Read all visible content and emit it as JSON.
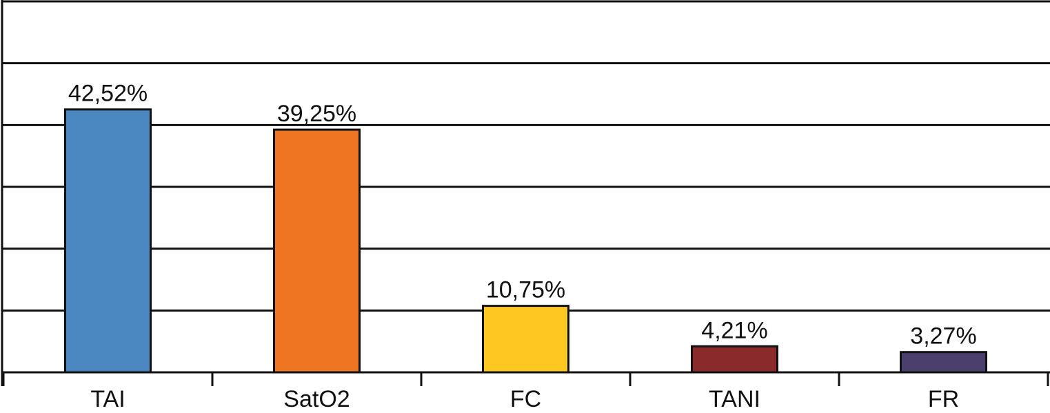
{
  "chart_data": {
    "type": "bar",
    "categories": [
      "TAI",
      "SatO2",
      "FC",
      "TANI",
      "FR"
    ],
    "values": [
      42.52,
      39.25,
      10.75,
      4.21,
      3.27
    ],
    "value_labels": [
      "42,52%",
      "39,25%",
      "10,75%",
      "4,21%",
      "3,27%"
    ],
    "colors": [
      "#4a86c0",
      "#ee7623",
      "#fdc822",
      "#8b2a2a",
      "#4b3f6e"
    ],
    "ylim": [
      0,
      60
    ],
    "yticks": [
      0,
      10,
      20,
      30,
      40,
      50,
      60
    ],
    "grid": true
  }
}
